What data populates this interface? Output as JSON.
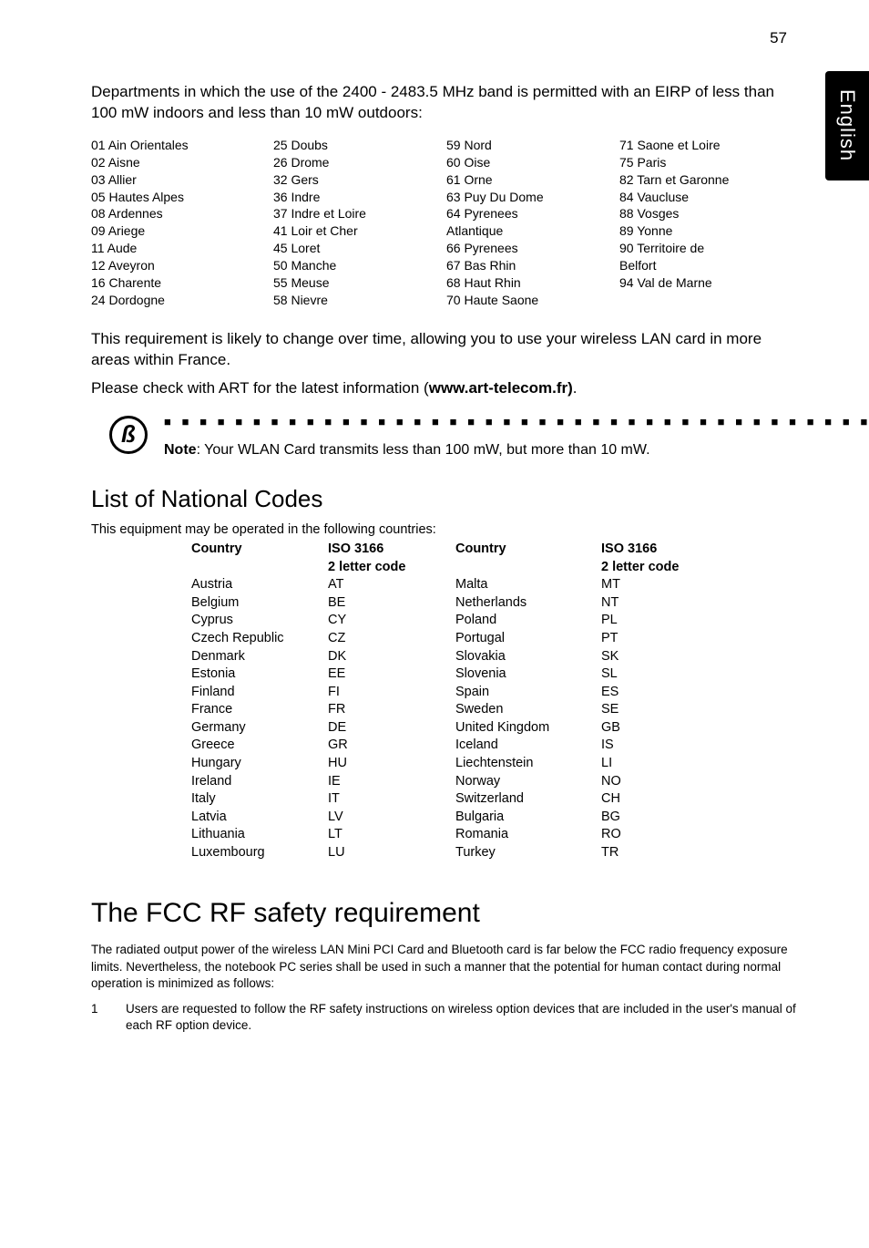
{
  "pageNumber": "57",
  "sideTab": "English",
  "introParagraph": "Departments in which the use of the 2400 - 2483.5 MHz band is permitted with an EIRP of less than 100 mW indoors and less than 10 mW outdoors:",
  "deptCol1": "01 Ain Orientales\n02 Aisne\n03 Allier\n05 Hautes Alpes\n08 Ardennes\n09 Ariege\n11 Aude\n12 Aveyron\n16 Charente\n24 Dordogne",
  "deptCol2": "25 Doubs\n26 Drome\n32 Gers\n36 Indre\n37 Indre et Loire\n41 Loir et Cher\n45 Loret\n50 Manche\n55 Meuse\n58 Nievre",
  "deptCol3": "59 Nord\n60 Oise\n61 Orne\n63 Puy Du Dome\n64 Pyrenees\nAtlantique\n66 Pyrenees\n67 Bas Rhin\n68 Haut Rhin\n70 Haute Saone",
  "deptCol4": "71 Saone et Loire\n75 Paris\n82 Tarn et Garonne\n84 Vaucluse\n88 Vosges\n89 Yonne\n90 Territoire de\nBelfort\n94 Val de Marne",
  "reqParagraph": "This requirement is likely to change over time, allowing you to use your wireless LAN card in more areas within France.",
  "checkPrefix": "Please check with ART for the latest information (",
  "checkBold": "www.art-telecom.fr)",
  "checkSuffix": ".",
  "noteGlyph": "ß",
  "noteDashes": "■ ■ ■ ■ ■ ■ ■ ■ ■ ■ ■ ■ ■ ■ ■ ■ ■ ■ ■ ■ ■ ■ ■ ■ ■ ■ ■ ■ ■ ■ ■ ■ ■ ■ ■ ■ ■ ■ ■ ■ ■ ■ ■ ■ ■ ■ ■ ■ ■  ■",
  "noteLabel": "Note",
  "noteBody": ": Your WLAN Card transmits less than 100 mW, but more than 10 mW.",
  "codesHeading": "List of National Codes",
  "equipIntro": "This equipment may be operated in the following countries:",
  "hdrCountry": "Country",
  "hdrIsoLine1": "ISO 3166",
  "hdrIsoLine2": "2 letter code",
  "codesRows": [
    [
      "Austria",
      "AT",
      "Malta",
      "MT"
    ],
    [
      "Belgium",
      "BE",
      "Netherlands",
      "NT"
    ],
    [
      "Cyprus",
      "CY",
      "Poland",
      "PL"
    ],
    [
      "Czech Republic",
      "CZ",
      "Portugal",
      "PT"
    ],
    [
      "Denmark",
      "DK",
      "Slovakia",
      "SK"
    ],
    [
      "Estonia",
      "EE",
      "Slovenia",
      "SL"
    ],
    [
      "Finland",
      "FI",
      "Spain",
      "ES"
    ],
    [
      "France",
      "FR",
      "Sweden",
      "SE"
    ],
    [
      "Germany",
      "DE",
      "United Kingdom",
      "GB"
    ],
    [
      "Greece",
      "GR",
      "Iceland",
      "IS"
    ],
    [
      "Hungary",
      "HU",
      "Liechtenstein",
      "LI"
    ],
    [
      "Ireland",
      "IE",
      "Norway",
      "NO"
    ],
    [
      "Italy",
      "IT",
      "Switzerland",
      "CH"
    ],
    [
      "Latvia",
      "LV",
      "Bulgaria",
      "BG"
    ],
    [
      "Lithuania",
      "LT",
      "Romania",
      "RO"
    ],
    [
      "Luxembourg",
      "LU",
      "Turkey",
      "TR"
    ]
  ],
  "fccHeading": "The FCC RF safety requirement",
  "fccBody": "The radiated output power of the wireless LAN Mini PCI Card and Bluetooth card is far below the FCC radio frequency exposure limits. Nevertheless, the notebook PC series shall be used in such a manner that the potential for human contact during normal operation is minimized as follows:",
  "listNum": "1",
  "listText": "Users are requested to follow the RF safety instructions on wireless option devices that are included in the user's manual of each RF option device."
}
